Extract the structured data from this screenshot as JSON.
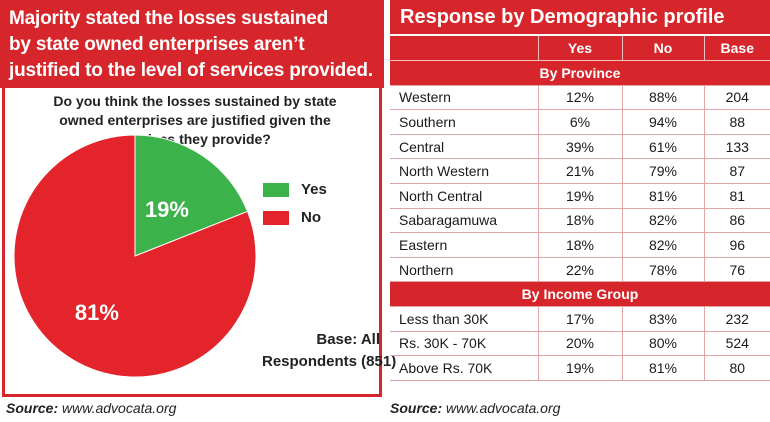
{
  "left": {
    "headline": [
      "Majority stated the losses sustained",
      "by state owned enterprises aren’t",
      "justified to the level of services provided."
    ],
    "question": [
      "Do you think the losses sustained by state",
      "owned enterprises are justified given the",
      "services they provide?"
    ],
    "base_note": [
      "Base: All",
      "Respondents (851)"
    ],
    "source_label": "Source:",
    "source_url": "www.advocata.org"
  },
  "chart_data": {
    "type": "pie",
    "slices": [
      {
        "label": "Yes",
        "value": 19,
        "display": "19%",
        "color": "#3bb34a"
      },
      {
        "label": "No",
        "value": 81,
        "display": "81%",
        "color": "#e3242b"
      }
    ],
    "legend": [
      "Yes",
      "No"
    ],
    "legend_position": "right"
  },
  "right": {
    "title": "Response by Demographic profile",
    "columns": [
      "",
      "Yes",
      "No",
      "Base"
    ],
    "groups": [
      {
        "title": "By Province",
        "rows": [
          {
            "name": "Western",
            "yes": "12%",
            "no": "88%",
            "base": "204"
          },
          {
            "name": "Southern",
            "yes": "6%",
            "no": "94%",
            "base": "88"
          },
          {
            "name": "Central",
            "yes": "39%",
            "no": "61%",
            "base": "133"
          },
          {
            "name": "North Western",
            "yes": "21%",
            "no": "79%",
            "base": "87"
          },
          {
            "name": "North Central",
            "yes": "19%",
            "no": "81%",
            "base": "81"
          },
          {
            "name": "Sabaragamuwa",
            "yes": "18%",
            "no": "82%",
            "base": "86"
          },
          {
            "name": "Eastern",
            "yes": "18%",
            "no": "82%",
            "base": "96"
          },
          {
            "name": "Northern",
            "yes": "22%",
            "no": "78%",
            "base": "76"
          }
        ]
      },
      {
        "title": "By Income Group",
        "rows": [
          {
            "name": "Less than 30K",
            "yes": "17%",
            "no": "83%",
            "base": "232"
          },
          {
            "name": "Rs. 30K - 70K",
            "yes": "20%",
            "no": "80%",
            "base": "524"
          },
          {
            "name": "Above Rs. 70K",
            "yes": "19%",
            "no": "81%",
            "base": "80"
          }
        ]
      }
    ],
    "source_label": "Source:",
    "source_url": "www.advocata.org"
  }
}
